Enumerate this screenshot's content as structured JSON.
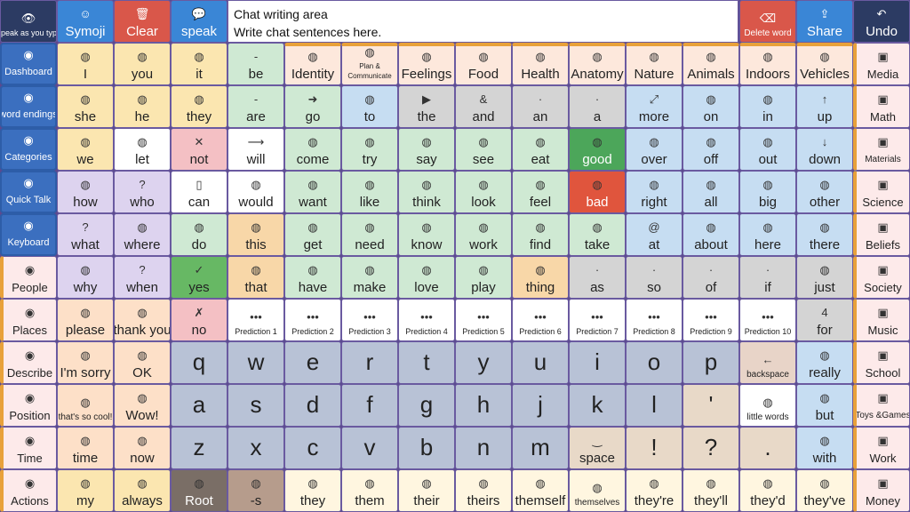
{
  "colors": {
    "nav": "#3b6fbf",
    "folder_orange": "#e8a13a",
    "pronoun_yellow": "#fbe6b0",
    "verb_green": "#cfe9d3",
    "question_purple": "#ddd3ef",
    "pink_neg": "#f4c0c4",
    "prep_blue": "#c6ddf2",
    "article_gray": "#d4d4d4",
    "letter_blue": "#b8c2d6",
    "top_red": "#d9574a",
    "top_blue": "#3a86d6",
    "undo_navy": "#2c3b63"
  },
  "top": {
    "speak_as_you_type": "Speak as you type",
    "symoji": "Symoji",
    "clear": "Clear",
    "speak": "speak",
    "chat_title": "Chat writing area",
    "chat_text": "Write chat sentences here.",
    "delete_word": "Delete word",
    "share": "Share",
    "undo": "Undo"
  },
  "left_nav": [
    "Dashboard",
    "word endings",
    "Categories",
    "Quick Talk",
    "Keyboard",
    "People",
    "Places",
    "Describe",
    "Position",
    "Time",
    "Actions"
  ],
  "right_nav": [
    "Media",
    "Math",
    "Materials",
    "Science",
    "Beliefs",
    "Society",
    "Music",
    "School",
    "Toys &Games",
    "Work",
    "Money"
  ],
  "rows": [
    [
      "I",
      "you",
      "it",
      "be",
      "Identity",
      "Plan & Communicate",
      "Feelings",
      "Food",
      "Health",
      "Anatomy",
      "Nature",
      "Animals",
      "Indoors",
      "Vehicles"
    ],
    [
      "she",
      "he",
      "they",
      "are",
      "go",
      "to",
      "the",
      "and",
      "an",
      "a",
      "more",
      "on",
      "in",
      "up"
    ],
    [
      "we",
      "let",
      "not",
      "will",
      "come",
      "try",
      "say",
      "see",
      "eat",
      "good",
      "over",
      "off",
      "out",
      "down"
    ],
    [
      "how",
      "who",
      "can",
      "would",
      "want",
      "like",
      "think",
      "look",
      "feel",
      "bad",
      "right",
      "all",
      "big",
      "other"
    ],
    [
      "what",
      "where",
      "do",
      "this",
      "get",
      "need",
      "know",
      "work",
      "find",
      "take",
      "at",
      "about",
      "here",
      "there"
    ],
    [
      "why",
      "when",
      "yes",
      "that",
      "have",
      "make",
      "love",
      "play",
      "thing",
      "as",
      "so",
      "of",
      "if",
      "just"
    ],
    [
      "please",
      "thank you",
      "no",
      "Prediction 1",
      "Prediction 2",
      "Prediction 3",
      "Prediction 4",
      "Prediction 5",
      "Prediction 6",
      "Prediction 7",
      "Prediction 8",
      "Prediction 9",
      "Prediction 10",
      "for"
    ],
    [
      "I'm sorry",
      "OK",
      "q",
      "w",
      "e",
      "r",
      "t",
      "y",
      "u",
      "i",
      "o",
      "p",
      "backspace",
      "really"
    ],
    [
      "that's so cool!",
      "Wow!",
      "a",
      "s",
      "d",
      "f",
      "g",
      "h",
      "j",
      "k",
      "l",
      "'",
      "little words",
      "but"
    ],
    [
      "time",
      "now",
      "z",
      "x",
      "c",
      "v",
      "b",
      "n",
      "m",
      "space",
      "!",
      "?",
      ".",
      "with"
    ],
    [
      "my",
      "always",
      "Root",
      "-s",
      "they",
      "them",
      "their",
      "theirs",
      "themself",
      "themselves",
      "they're",
      "they'll",
      "they'd",
      "they've"
    ]
  ],
  "small_glyphs": {
    "be": "-",
    "are": "-",
    "the": "▶",
    "and": "&",
    "an": "an",
    "a": "",
    "as": "as",
    "so": "so",
    "of": "of",
    "if": "if",
    "at": "@",
    "for": "4",
    "prediction": "•••",
    "space": "‿"
  }
}
